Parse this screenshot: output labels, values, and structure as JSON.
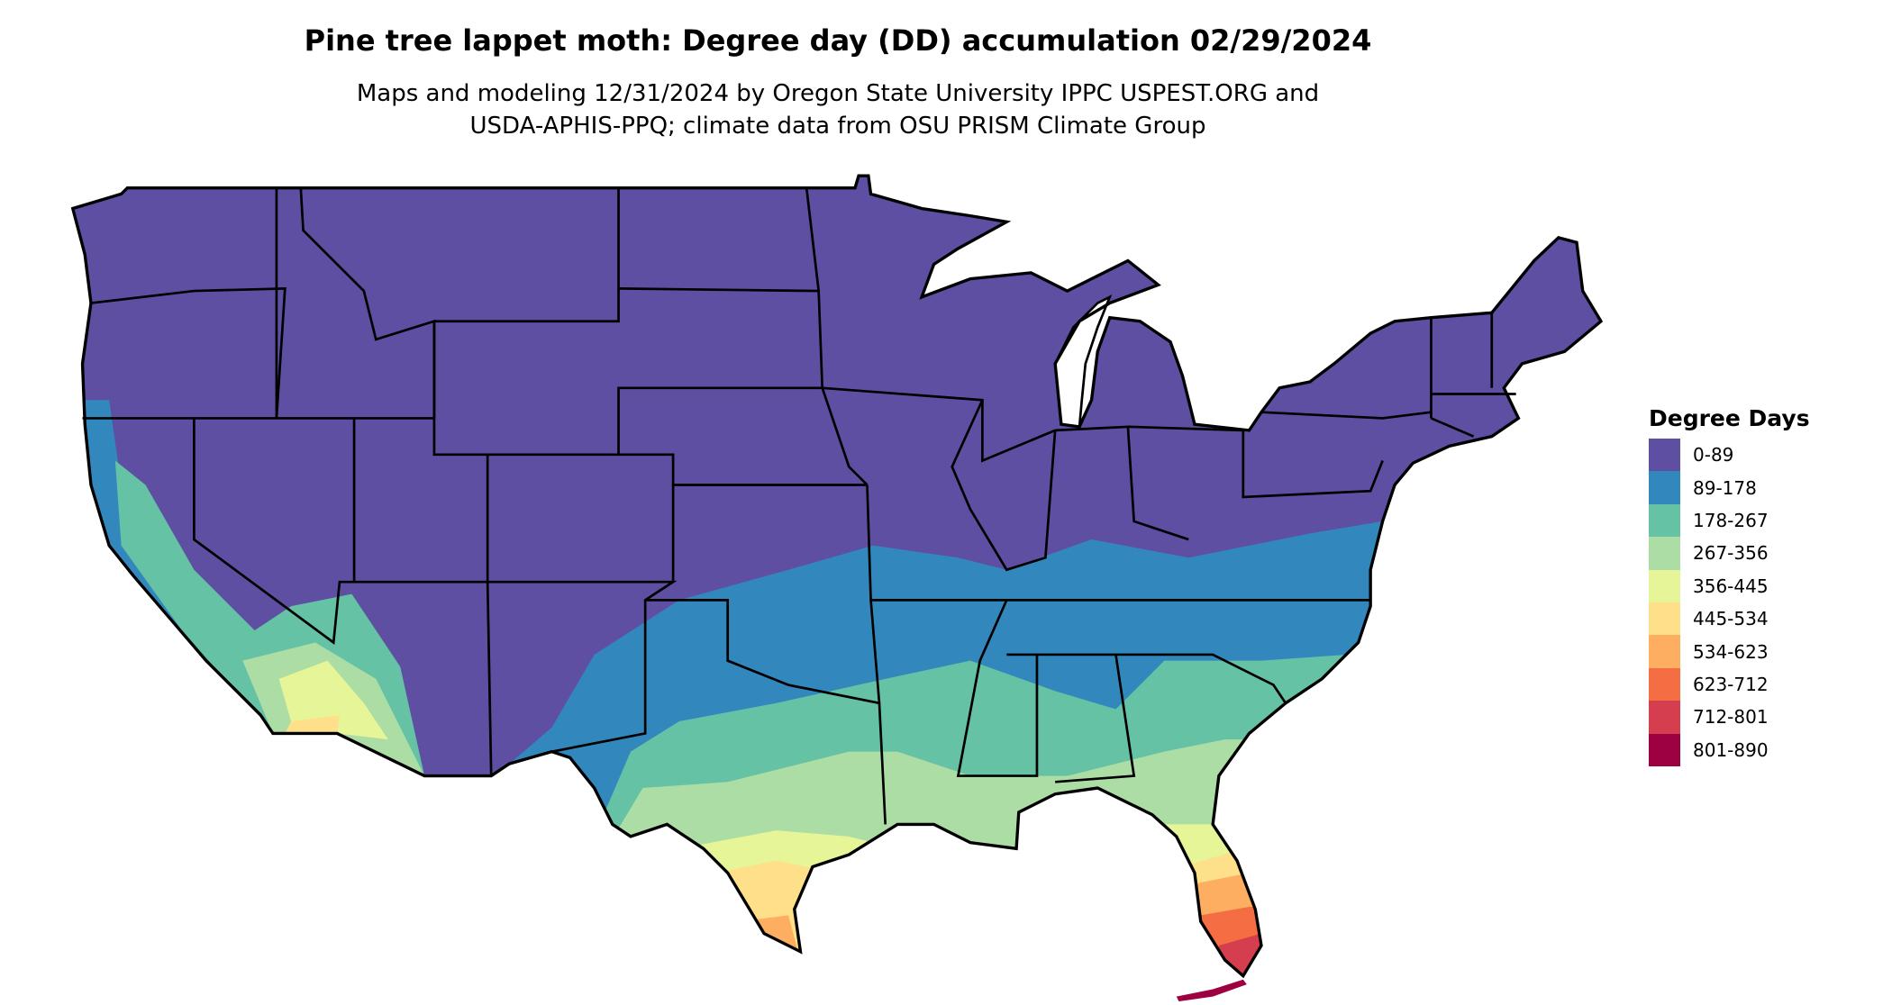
{
  "title": "Pine tree lappet moth: Degree day (DD) accumulation 02/29/2024",
  "subtitle_line1": "Maps and modeling 12/31/2024 by Oregon State University IPPC USPEST.ORG and",
  "subtitle_line2": "USDA-APHIS-PPQ; climate data from OSU PRISM Climate Group",
  "legend": {
    "title": "Degree Days",
    "items": [
      {
        "label": "0-89",
        "color": "#5E4FA2"
      },
      {
        "label": "89-178",
        "color": "#3288BD"
      },
      {
        "label": "178-267",
        "color": "#66C2A5"
      },
      {
        "label": "267-356",
        "color": "#ABDDA4"
      },
      {
        "label": "356-445",
        "color": "#E6F598"
      },
      {
        "label": "445-534",
        "color": "#FEE08B"
      },
      {
        "label": "534-623",
        "color": "#FDAE61"
      },
      {
        "label": "623-712",
        "color": "#F46D43"
      },
      {
        "label": "712-801",
        "color": "#D53E4F"
      },
      {
        "label": "801-890",
        "color": "#9E0142"
      }
    ]
  }
}
